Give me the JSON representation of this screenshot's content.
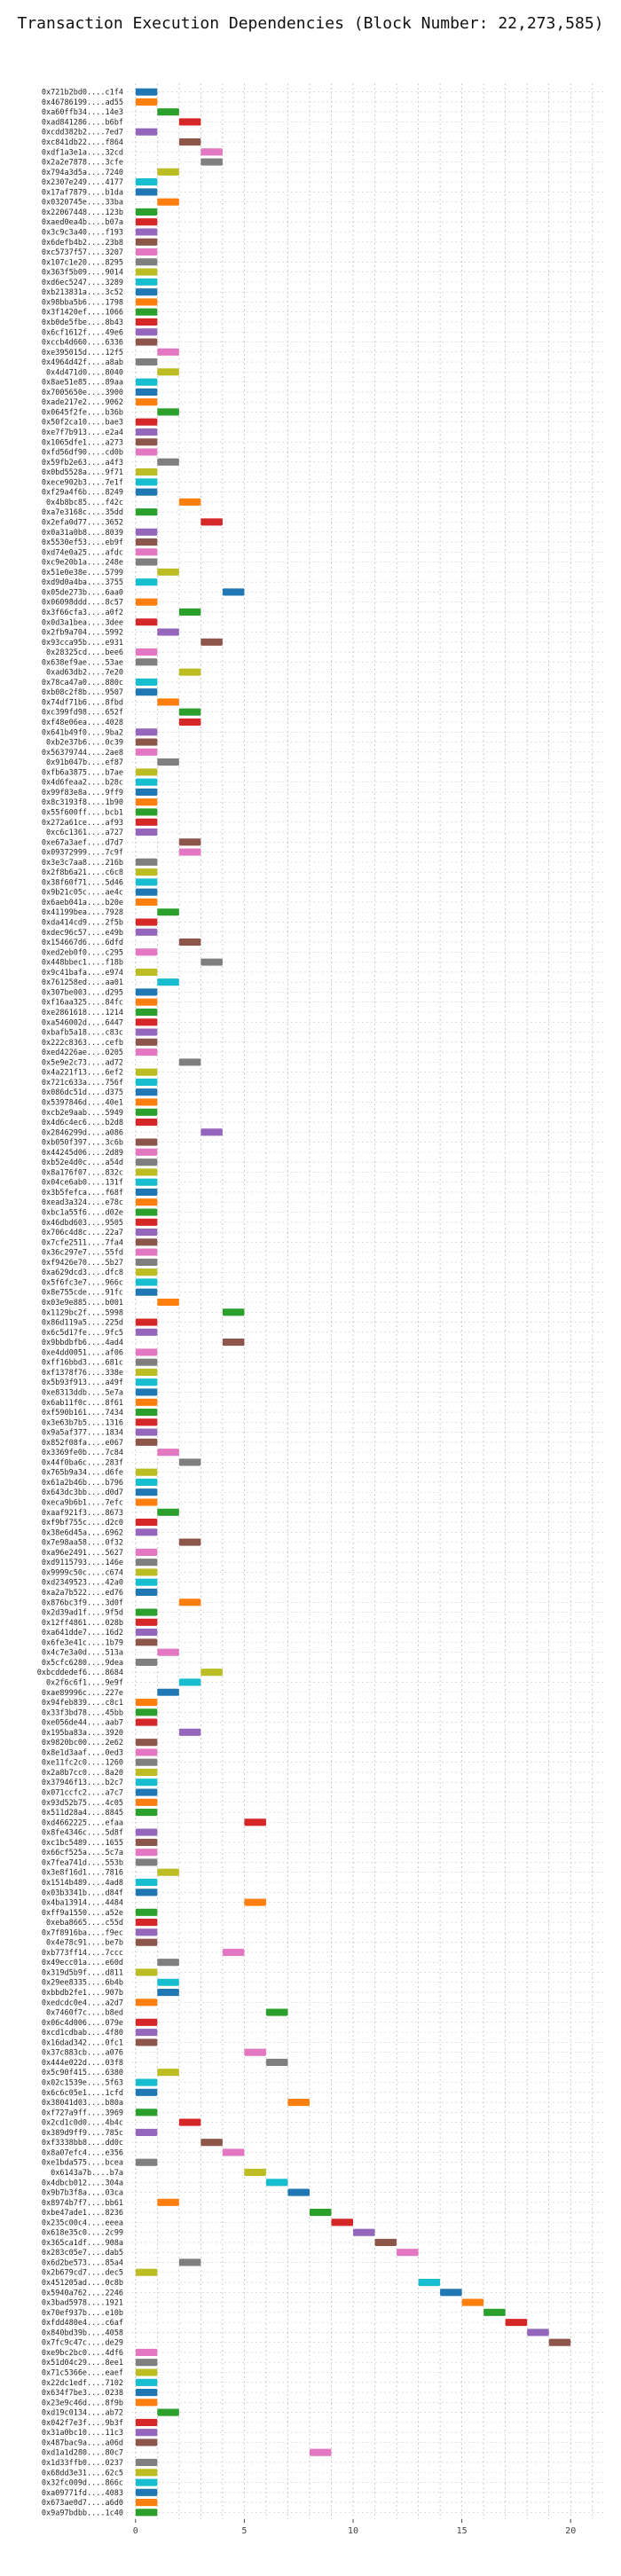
{
  "chart_data": {
    "type": "bar",
    "orientation": "horizontal-gantt",
    "title": "Transaction Execution Dependencies (Block Number: 22,273,585)",
    "xlabel": "",
    "ylabel": "",
    "xlim": [
      -0.4,
      21.5
    ],
    "xticks": [
      0,
      5,
      10,
      15,
      20
    ],
    "grid": true,
    "legend": "none",
    "palette": [
      "#1f77b4",
      "#ff7f0e",
      "#2ca02c",
      "#d62728",
      "#9467bd",
      "#8c564b",
      "#e377c2",
      "#7f7f7f",
      "#bcbd22",
      "#17becf"
    ],
    "transactions": [
      {
        "hash": "0x721b2bd0....c1f4",
        "level": 0
      },
      {
        "hash": "0x46786199....ad55",
        "level": 0
      },
      {
        "hash": "0xa60ffb34....14e3",
        "level": 1
      },
      {
        "hash": "0xad841286....b6bf",
        "level": 2
      },
      {
        "hash": "0xcdd382b2....7ed7",
        "level": 0
      },
      {
        "hash": "0xc841db22....f864",
        "level": 2
      },
      {
        "hash": "0xdf1a3e1a....32cd",
        "level": 3
      },
      {
        "hash": "0x2a2e7878....3cfe",
        "level": 3
      },
      {
        "hash": "0x794a3d5a....7240",
        "level": 1
      },
      {
        "hash": "0x2307e249....4177",
        "level": 0
      },
      {
        "hash": "0x17af7879....b1da",
        "level": 0
      },
      {
        "hash": "0x0320745e....33ba",
        "level": 1
      },
      {
        "hash": "0x22067448....123b",
        "level": 0
      },
      {
        "hash": "0xaed0ea4b....b07a",
        "level": 0
      },
      {
        "hash": "0x3c9c3a40....f193",
        "level": 0
      },
      {
        "hash": "0x6defb4b2....23b8",
        "level": 0
      },
      {
        "hash": "0xc5737f57....3207",
        "level": 0
      },
      {
        "hash": "0x107c1e20....8295",
        "level": 0
      },
      {
        "hash": "0x363f5b09....9014",
        "level": 0
      },
      {
        "hash": "0xd6ec5247....3289",
        "level": 0
      },
      {
        "hash": "0xb213831a....3c52",
        "level": 0
      },
      {
        "hash": "0x98bba5b6....1798",
        "level": 0
      },
      {
        "hash": "0x3f1420ef....1066",
        "level": 0
      },
      {
        "hash": "0xb0de5fbe....8b43",
        "level": 0
      },
      {
        "hash": "0x6cf1612f....49e6",
        "level": 0
      },
      {
        "hash": "0xccb4d660....6336",
        "level": 0
      },
      {
        "hash": "0xe395015d....12f5",
        "level": 1
      },
      {
        "hash": "0x4964d42f....a8ab",
        "level": 0
      },
      {
        "hash": "0x4d471d0....8040",
        "level": 1
      },
      {
        "hash": "0x8ae51e85....89aa",
        "level": 0
      },
      {
        "hash": "0x7005650e....3900",
        "level": 0
      },
      {
        "hash": "0xade217e2....9062",
        "level": 0
      },
      {
        "hash": "0x0645f2fe....b36b",
        "level": 1
      },
      {
        "hash": "0x50f2ca10....bae3",
        "level": 0
      },
      {
        "hash": "0xe7f7b913....e2a4",
        "level": 0
      },
      {
        "hash": "0x1065dfe1....a273",
        "level": 0
      },
      {
        "hash": "0xfd56df90....cd0b",
        "level": 0
      },
      {
        "hash": "0x59fb2e63....a4f3",
        "level": 1
      },
      {
        "hash": "0x0bd5528a....9f71",
        "level": 0
      },
      {
        "hash": "0xece902b3....7e1f",
        "level": 0
      },
      {
        "hash": "0xf29a4f6b....8249",
        "level": 0
      },
      {
        "hash": "0x4b8bc85....f42c",
        "level": 2
      },
      {
        "hash": "0xa7e3168c....35dd",
        "level": 0
      },
      {
        "hash": "0x2efa0d77....3652",
        "level": 3
      },
      {
        "hash": "0x0a31a0b8....8039",
        "level": 0
      },
      {
        "hash": "0x5530ef53....eb9f",
        "level": 0
      },
      {
        "hash": "0xd74e0a25....afdc",
        "level": 0
      },
      {
        "hash": "0xc9e20b1a....248e",
        "level": 0
      },
      {
        "hash": "0x51e0e38e....5799",
        "level": 1
      },
      {
        "hash": "0xd9d0a4ba....3755",
        "level": 0
      },
      {
        "hash": "0x05de273b....6aa0",
        "level": 4
      },
      {
        "hash": "0x06098ddd....8c57",
        "level": 0
      },
      {
        "hash": "0x3f66cfa3....a0f2",
        "level": 2
      },
      {
        "hash": "0x0d3a1bea....3dee",
        "level": 0
      },
      {
        "hash": "0x2fb9a704....5992",
        "level": 1
      },
      {
        "hash": "0x93cca95b....e931",
        "level": 3
      },
      {
        "hash": "0x28325cd....bee6",
        "level": 0
      },
      {
        "hash": "0x638ef9ae....53ae",
        "level": 0
      },
      {
        "hash": "0xad63db2....7e20",
        "level": 2
      },
      {
        "hash": "0x78ca47a0....880c",
        "level": 0
      },
      {
        "hash": "0xb08c2f8b....9507",
        "level": 0
      },
      {
        "hash": "0x74df71b6....8fbd",
        "level": 1
      },
      {
        "hash": "0xc399fd98....652f",
        "level": 2
      },
      {
        "hash": "0xf48e06ea....4028",
        "level": 2
      },
      {
        "hash": "0x641b49f0....9ba2",
        "level": 0
      },
      {
        "hash": "0xb2e37b6....0c39",
        "level": 0
      },
      {
        "hash": "0x56379744....2ae8",
        "level": 0
      },
      {
        "hash": "0x91b047b....ef87",
        "level": 1
      },
      {
        "hash": "0xfb6a3875....b7ae",
        "level": 0
      },
      {
        "hash": "0x4d6feaa2....b28c",
        "level": 0
      },
      {
        "hash": "0x99f83e8a....9ff9",
        "level": 0
      },
      {
        "hash": "0x8c3193f8....1b90",
        "level": 0
      },
      {
        "hash": "0x55f600ff....bcb1",
        "level": 0
      },
      {
        "hash": "0x272a61ce....af93",
        "level": 0
      },
      {
        "hash": "0xc6c1361....a727",
        "level": 0
      },
      {
        "hash": "0xe67a3aef....d7d7",
        "level": 2
      },
      {
        "hash": "0x09372999....7c9f",
        "level": 2
      },
      {
        "hash": "0x3e3c7aa8....216b",
        "level": 0
      },
      {
        "hash": "0x2f8b6a21....c6c8",
        "level": 0
      },
      {
        "hash": "0x38f60f71....5d46",
        "level": 0
      },
      {
        "hash": "0x9b21c05c....ae4c",
        "level": 0
      },
      {
        "hash": "0x6aeb041a....b20e",
        "level": 0
      },
      {
        "hash": "0x41199bea....7928",
        "level": 1
      },
      {
        "hash": "0xda414cd9....2f5b",
        "level": 0
      },
      {
        "hash": "0xdec96c57....e49b",
        "level": 0
      },
      {
        "hash": "0x154667d6....6dfd",
        "level": 2
      },
      {
        "hash": "0xed2eb0f0....c295",
        "level": 0
      },
      {
        "hash": "0x448bbec1....f18b",
        "level": 3
      },
      {
        "hash": "0x9c41bafa....e974",
        "level": 0
      },
      {
        "hash": "0x761258ed....aa01",
        "level": 1
      },
      {
        "hash": "0x307be003....d295",
        "level": 0
      },
      {
        "hash": "0xf16aa325....84fc",
        "level": 0
      },
      {
        "hash": "0xe2861618....1214",
        "level": 0
      },
      {
        "hash": "0xa546002d....6447",
        "level": 0
      },
      {
        "hash": "0xbafb5a18....c83c",
        "level": 0
      },
      {
        "hash": "0x222c8363....cefb",
        "level": 0
      },
      {
        "hash": "0xed4226ae....0205",
        "level": 0
      },
      {
        "hash": "0x5e9e2c73....ad72",
        "level": 2
      },
      {
        "hash": "0x4a221f13....6ef2",
        "level": 0
      },
      {
        "hash": "0x721c633a....756f",
        "level": 0
      },
      {
        "hash": "0x086dc51d....d375",
        "level": 0
      },
      {
        "hash": "0x5397846d....40e1",
        "level": 0
      },
      {
        "hash": "0xcb2e9aab....5949",
        "level": 0
      },
      {
        "hash": "0x4d6c4ec6....b2d8",
        "level": 0
      },
      {
        "hash": "0x2846299d....a086",
        "level": 3
      },
      {
        "hash": "0xb050f397....3c6b",
        "level": 0
      },
      {
        "hash": "0x44245d06....2d89",
        "level": 0
      },
      {
        "hash": "0xb52e4d0c....a54d",
        "level": 0
      },
      {
        "hash": "0x8a176f07....832c",
        "level": 0
      },
      {
        "hash": "0x04ce6ab0....131f",
        "level": 0
      },
      {
        "hash": "0x3b5fefca....f68f",
        "level": 0
      },
      {
        "hash": "0xead3a324....e78c",
        "level": 0
      },
      {
        "hash": "0xbc1a55f6....d02e",
        "level": 0
      },
      {
        "hash": "0x46dbd603....9505",
        "level": 0
      },
      {
        "hash": "0x706c4d8c....22a7",
        "level": 0
      },
      {
        "hash": "0x7cfe2511....7fa4",
        "level": 0
      },
      {
        "hash": "0x36c297e7....55fd",
        "level": 0
      },
      {
        "hash": "0xf9426e70....5b27",
        "level": 0
      },
      {
        "hash": "0xa629dcd3....dfc8",
        "level": 0
      },
      {
        "hash": "0x5f6fc3e7....966c",
        "level": 0
      },
      {
        "hash": "0x8e755cde....91fc",
        "level": 0
      },
      {
        "hash": "0x03e9e885....b001",
        "level": 1
      },
      {
        "hash": "0x1129bc2f....5998",
        "level": 4
      },
      {
        "hash": "0x86d119a5....225d",
        "level": 0
      },
      {
        "hash": "0x6c5d17fe....9fc5",
        "level": 0
      },
      {
        "hash": "0x9bbdbfb6....4ad4",
        "level": 4
      },
      {
        "hash": "0xe4dd0051....af06",
        "level": 0
      },
      {
        "hash": "0xff16bbd3....681c",
        "level": 0
      },
      {
        "hash": "0xf1378f76....338e",
        "level": 0
      },
      {
        "hash": "0x5b93f913....a49f",
        "level": 0
      },
      {
        "hash": "0xe8313ddb....5e7a",
        "level": 0
      },
      {
        "hash": "0x6ab11f0c....8f61",
        "level": 0
      },
      {
        "hash": "0xf590b161....7434",
        "level": 0
      },
      {
        "hash": "0x3e63b7b5....1316",
        "level": 0
      },
      {
        "hash": "0x9a5af377....1834",
        "level": 0
      },
      {
        "hash": "0x852f08fa....e067",
        "level": 0
      },
      {
        "hash": "0x3369fe0b....7c84",
        "level": 1
      },
      {
        "hash": "0x44f0ba6c....283f",
        "level": 2
      },
      {
        "hash": "0x765b9a34....d6fe",
        "level": 0
      },
      {
        "hash": "0x61a2b46b....b796",
        "level": 0
      },
      {
        "hash": "0x643dc3bb....d0d7",
        "level": 0
      },
      {
        "hash": "0xeca9b6b1....7efc",
        "level": 0
      },
      {
        "hash": "0xaaf921f3....8673",
        "level": 1
      },
      {
        "hash": "0xf9bf755c....d2c0",
        "level": 0
      },
      {
        "hash": "0x38e6d45a....6962",
        "level": 0
      },
      {
        "hash": "0x7e98aa58....0f32",
        "level": 2
      },
      {
        "hash": "0xa96e2491....5627",
        "level": 0
      },
      {
        "hash": "0xd9115793....146e",
        "level": 0
      },
      {
        "hash": "0x9999c50c....c674",
        "level": 0
      },
      {
        "hash": "0xd2349523....42a0",
        "level": 0
      },
      {
        "hash": "0xa2a7b522....ed76",
        "level": 0
      },
      {
        "hash": "0x876bc3f9....3d0f",
        "level": 2
      },
      {
        "hash": "0x2d39ad1f....9f5d",
        "level": 0
      },
      {
        "hash": "0x12ff4861....028b",
        "level": 0
      },
      {
        "hash": "0xa641dde7....16d2",
        "level": 0
      },
      {
        "hash": "0x6fe3e41c....1b79",
        "level": 0
      },
      {
        "hash": "0x4c7e3a0d....513a",
        "level": 1
      },
      {
        "hash": "0x5cfc6280....9dea",
        "level": 0
      },
      {
        "hash": "0xbcddedef6....8684",
        "level": 3
      },
      {
        "hash": "0x2f6c6f1....9e9f",
        "level": 2
      },
      {
        "hash": "0xae89996c....227e",
        "level": 1
      },
      {
        "hash": "0x94feb839....c8c1",
        "level": 0
      },
      {
        "hash": "0x33f3bd78....45bb",
        "level": 0
      },
      {
        "hash": "0xe056de44....aab7",
        "level": 0
      },
      {
        "hash": "0x195ba83a....3920",
        "level": 2
      },
      {
        "hash": "0x9820bc00....2e62",
        "level": 0
      },
      {
        "hash": "0x8e1d3aaf....0ed3",
        "level": 0
      },
      {
        "hash": "0xe11fc2c0....1260",
        "level": 0
      },
      {
        "hash": "0x2a8b7cc0....8a20",
        "level": 0
      },
      {
        "hash": "0x37946f13....b2c7",
        "level": 0
      },
      {
        "hash": "0x071ccfc2....a7c7",
        "level": 0
      },
      {
        "hash": "0x93d52b75....4c05",
        "level": 0
      },
      {
        "hash": "0x511d28a4....8845",
        "level": 0
      },
      {
        "hash": "0xd4662225....efaa",
        "level": 5
      },
      {
        "hash": "0x8fe4346c....5d8f",
        "level": 0
      },
      {
        "hash": "0xc1bc5489....1655",
        "level": 0
      },
      {
        "hash": "0x66cf525a....5c7a",
        "level": 0
      },
      {
        "hash": "0x7fea741d....553b",
        "level": 0
      },
      {
        "hash": "0x3e8f16d1....7816",
        "level": 1
      },
      {
        "hash": "0x1514b489....4ad8",
        "level": 0
      },
      {
        "hash": "0x03b3341b....d84f",
        "level": 0
      },
      {
        "hash": "0x4ba13914....4484",
        "level": 5
      },
      {
        "hash": "0xff9a1550....a52e",
        "level": 0
      },
      {
        "hash": "0xeba8665....c55d",
        "level": 0
      },
      {
        "hash": "0x7f8916ba....f9ec",
        "level": 0
      },
      {
        "hash": "0x4e78c91....be7b",
        "level": 0
      },
      {
        "hash": "0xb773ff14....7ccc",
        "level": 4
      },
      {
        "hash": "0x49ecc01a....e60d",
        "level": 1
      },
      {
        "hash": "0x319d5b9f....d811",
        "level": 0
      },
      {
        "hash": "0x29ee8335....6b4b",
        "level": 1
      },
      {
        "hash": "0xbbdb2fe1....907b",
        "level": 1
      },
      {
        "hash": "0xedcdc0e4....a2d7",
        "level": 0
      },
      {
        "hash": "0x7460f7c....b8ed",
        "level": 6
      },
      {
        "hash": "0x06c4d006....079e",
        "level": 0
      },
      {
        "hash": "0xcd1cdbab....4f80",
        "level": 0
      },
      {
        "hash": "0x16dad342....0fc1",
        "level": 0
      },
      {
        "hash": "0x37c883cb....a076",
        "level": 5
      },
      {
        "hash": "0x444e022d....03f8",
        "level": 6
      },
      {
        "hash": "0x5c90f415....6380",
        "level": 1
      },
      {
        "hash": "0x02c1539e....5f63",
        "level": 0
      },
      {
        "hash": "0x6c6c05e1....1cfd",
        "level": 0
      },
      {
        "hash": "0x38041d03....b80a",
        "level": 7
      },
      {
        "hash": "0xf727a9ff....3969",
        "level": 0
      },
      {
        "hash": "0x2cd1c0d0....4b4c",
        "level": 2
      },
      {
        "hash": "0x389d9ff9....785c",
        "level": 0
      },
      {
        "hash": "0xf3338bb8....dd0c",
        "level": 3
      },
      {
        "hash": "0x8a07efc4....e356",
        "level": 4
      },
      {
        "hash": "0xe1bda575....bcea",
        "level": 0
      },
      {
        "hash": "0x6143a7b....b7a",
        "level": 5
      },
      {
        "hash": "0x4dbcb012....304a",
        "level": 6
      },
      {
        "hash": "0x9b7b3f8a....03ca",
        "level": 7
      },
      {
        "hash": "0x8974b7f7....bb61",
        "level": 1
      },
      {
        "hash": "0xbe47ade1....8236",
        "level": 8
      },
      {
        "hash": "0x235c00c4....eeea",
        "level": 9
      },
      {
        "hash": "0x618e35c0....2c99",
        "level": 10
      },
      {
        "hash": "0x365ca1df....908a",
        "level": 11
      },
      {
        "hash": "0x283c05e7....dab5",
        "level": 12
      },
      {
        "hash": "0x6d2be573....85a4",
        "level": 2
      },
      {
        "hash": "0x2b679cd7....dec5",
        "level": 0
      },
      {
        "hash": "0x451205ad....0c8b",
        "level": 13
      },
      {
        "hash": "0x5940a762....2246",
        "level": 14
      },
      {
        "hash": "0x3bad5978....1921",
        "level": 15
      },
      {
        "hash": "0x70ef937b....e10b",
        "level": 16
      },
      {
        "hash": "0xfdd480e4....c6af",
        "level": 17
      },
      {
        "hash": "0x840bd39b....4058",
        "level": 18
      },
      {
        "hash": "0x7fc9c47c....de29",
        "level": 19
      },
      {
        "hash": "0xe9bc2bc0....4df6",
        "level": 0
      },
      {
        "hash": "0x51d04c29....8ee1",
        "level": 0
      },
      {
        "hash": "0x71c5366e....eaef",
        "level": 0
      },
      {
        "hash": "0x22dc1edf....7102",
        "level": 0
      },
      {
        "hash": "0x634f7be3....0238",
        "level": 0
      },
      {
        "hash": "0x23e9c46d....8f9b",
        "level": 0
      },
      {
        "hash": "0xd19c0134....ab72",
        "level": 1
      },
      {
        "hash": "0x042f7e3f....9b3f",
        "level": 0
      },
      {
        "hash": "0x31a0bc10....11c3",
        "level": 0
      },
      {
        "hash": "0x487bac9a....a06d",
        "level": 0
      },
      {
        "hash": "0xd1a1d280....80c7",
        "level": 8
      },
      {
        "hash": "0x1d33ffb0....0237",
        "level": 0
      },
      {
        "hash": "0x68dd3e31....62c5",
        "level": 0
      },
      {
        "hash": "0x32fc009d....866c",
        "level": 0
      },
      {
        "hash": "0xa09771fd....4083",
        "level": 0
      },
      {
        "hash": "0x673ae0d7....a6d0",
        "level": 0
      },
      {
        "hash": "0x9a97bdbb....1c40",
        "level": 0
      }
    ]
  }
}
